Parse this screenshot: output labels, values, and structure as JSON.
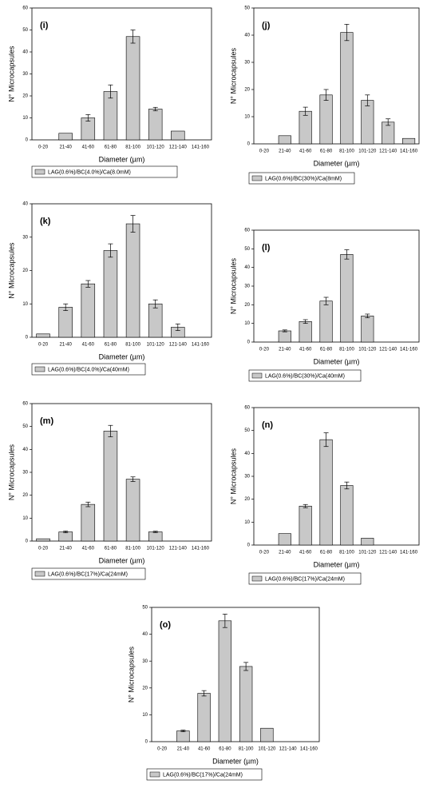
{
  "chart_data": [
    {
      "type": "bar",
      "panel_label": "(i)",
      "ylabel": "N° Microcapsules",
      "xlabel": "Diameter (µm)",
      "legend": "LAG(0.6%)/BC(4.0%)/Ca(8.0mM)",
      "color": "#c8c8c8",
      "categories": [
        "0-20",
        "21-40",
        "41-60",
        "61-80",
        "81-100",
        "101-120",
        "121-140",
        "141-160"
      ],
      "values": [
        0,
        3,
        10,
        22,
        47,
        14,
        4,
        0
      ],
      "errors": [
        null,
        null,
        1.5,
        3,
        3,
        0.8,
        null,
        null
      ],
      "ylim": [
        0,
        60
      ],
      "yticks": [
        0,
        10,
        20,
        30,
        40,
        50,
        60
      ]
    },
    {
      "type": "bar",
      "panel_label": "(j)",
      "ylabel": "N° Microcapsules",
      "xlabel": "Diameter (µm)",
      "legend": "LAG(0.6%)/BC(30%)/Ca(8mM)",
      "color": "#c8c8c8",
      "categories": [
        "0-20",
        "21-40",
        "41-60",
        "61-80",
        "81-100",
        "101-120",
        "121-140",
        "141-160"
      ],
      "values": [
        0,
        3,
        12,
        18,
        41,
        16,
        8,
        2
      ],
      "errors": [
        null,
        null,
        1.5,
        2,
        3,
        2,
        1.2,
        null
      ],
      "ylim": [
        0,
        50
      ],
      "yticks": [
        0,
        10,
        20,
        30,
        40,
        50
      ]
    },
    {
      "type": "bar",
      "panel_label": "(k)",
      "ylabel": "N° Microcapsules",
      "xlabel": "Diameter (µm)",
      "legend": "LAG(0.6%)/BC(4.0%)/Ca(40mM)",
      "color": "#c8c8c8",
      "categories": [
        "0-20",
        "21-40",
        "41-60",
        "61-80",
        "81-100",
        "101-120",
        "121-140",
        "141-160"
      ],
      "values": [
        1,
        9,
        16,
        26,
        34,
        10,
        3,
        0
      ],
      "errors": [
        null,
        1,
        1,
        2,
        2.5,
        1.2,
        1,
        null
      ],
      "ylim": [
        0,
        40
      ],
      "yticks": [
        0,
        10,
        20,
        30,
        40
      ]
    },
    {
      "type": "bar",
      "panel_label": "(l)",
      "ylabel": "N° Microcapsules",
      "xlabel": "Diameter (µm)",
      "legend": "LAG(0.6%)/BC(30%)/Ca(40mM)",
      "color": "#c8c8c8",
      "categories": [
        "0-20",
        "21-40",
        "41-60",
        "61-80",
        "81-100",
        "101-120",
        "121-140",
        "141-160"
      ],
      "values": [
        0,
        6,
        11,
        22,
        47,
        14,
        0,
        0
      ],
      "errors": [
        null,
        0.5,
        1,
        2,
        2.5,
        1,
        null,
        null
      ],
      "ylim": [
        0,
        60
      ],
      "yticks": [
        0,
        10,
        20,
        30,
        40,
        50,
        60
      ]
    },
    {
      "type": "bar",
      "panel_label": "(m)",
      "ylabel": "N° Microcapsules",
      "xlabel": "Diameter (µm)",
      "legend": "LAG(0.6%)/BC(17%)/Ca(24mM)",
      "color": "#c8c8c8",
      "categories": [
        "0-20",
        "21-40",
        "41-60",
        "61-80",
        "81-100",
        "101-120",
        "121-140",
        "141-160"
      ],
      "values": [
        1,
        4,
        16,
        48,
        27,
        4,
        0,
        0
      ],
      "errors": [
        null,
        0.4,
        1,
        2.5,
        1,
        0.3,
        null,
        null
      ],
      "ylim": [
        0,
        60
      ],
      "yticks": [
        0,
        10,
        20,
        30,
        40,
        50,
        60
      ]
    },
    {
      "type": "bar",
      "panel_label": "(n)",
      "ylabel": "N° Microcapsules",
      "xlabel": "Diameter (µm)",
      "legend": "LAG(0.6%)/BC(17%)/Ca(24mM)",
      "color": "#c8c8c8",
      "categories": [
        "0-20",
        "21-40",
        "41-60",
        "61-80",
        "81-100",
        "101-120",
        "121-140",
        "141-160"
      ],
      "values": [
        0,
        5,
        17,
        46,
        26,
        3,
        0,
        0
      ],
      "errors": [
        null,
        null,
        0.7,
        3,
        1.5,
        null,
        null,
        null
      ],
      "ylim": [
        0,
        60
      ],
      "yticks": [
        0,
        10,
        20,
        30,
        40,
        50,
        60
      ]
    },
    {
      "type": "bar",
      "panel_label": "(o)",
      "ylabel": "N° Microcapsules",
      "xlabel": "Diameter (µm)",
      "legend": "LAG(0.6%)/BC(17%)/Ca(24mM)",
      "color": "#c8c8c8",
      "categories": [
        "0-20",
        "21-40",
        "41-60",
        "61-80",
        "81-100",
        "101-120",
        "121-140",
        "141-160"
      ],
      "values": [
        0,
        4,
        18,
        45,
        28,
        5,
        0,
        0
      ],
      "errors": [
        null,
        0.3,
        1,
        2.5,
        1.5,
        null,
        null,
        null
      ],
      "ylim": [
        0,
        50
      ],
      "yticks": [
        0,
        10,
        20,
        30,
        40,
        50
      ]
    }
  ]
}
